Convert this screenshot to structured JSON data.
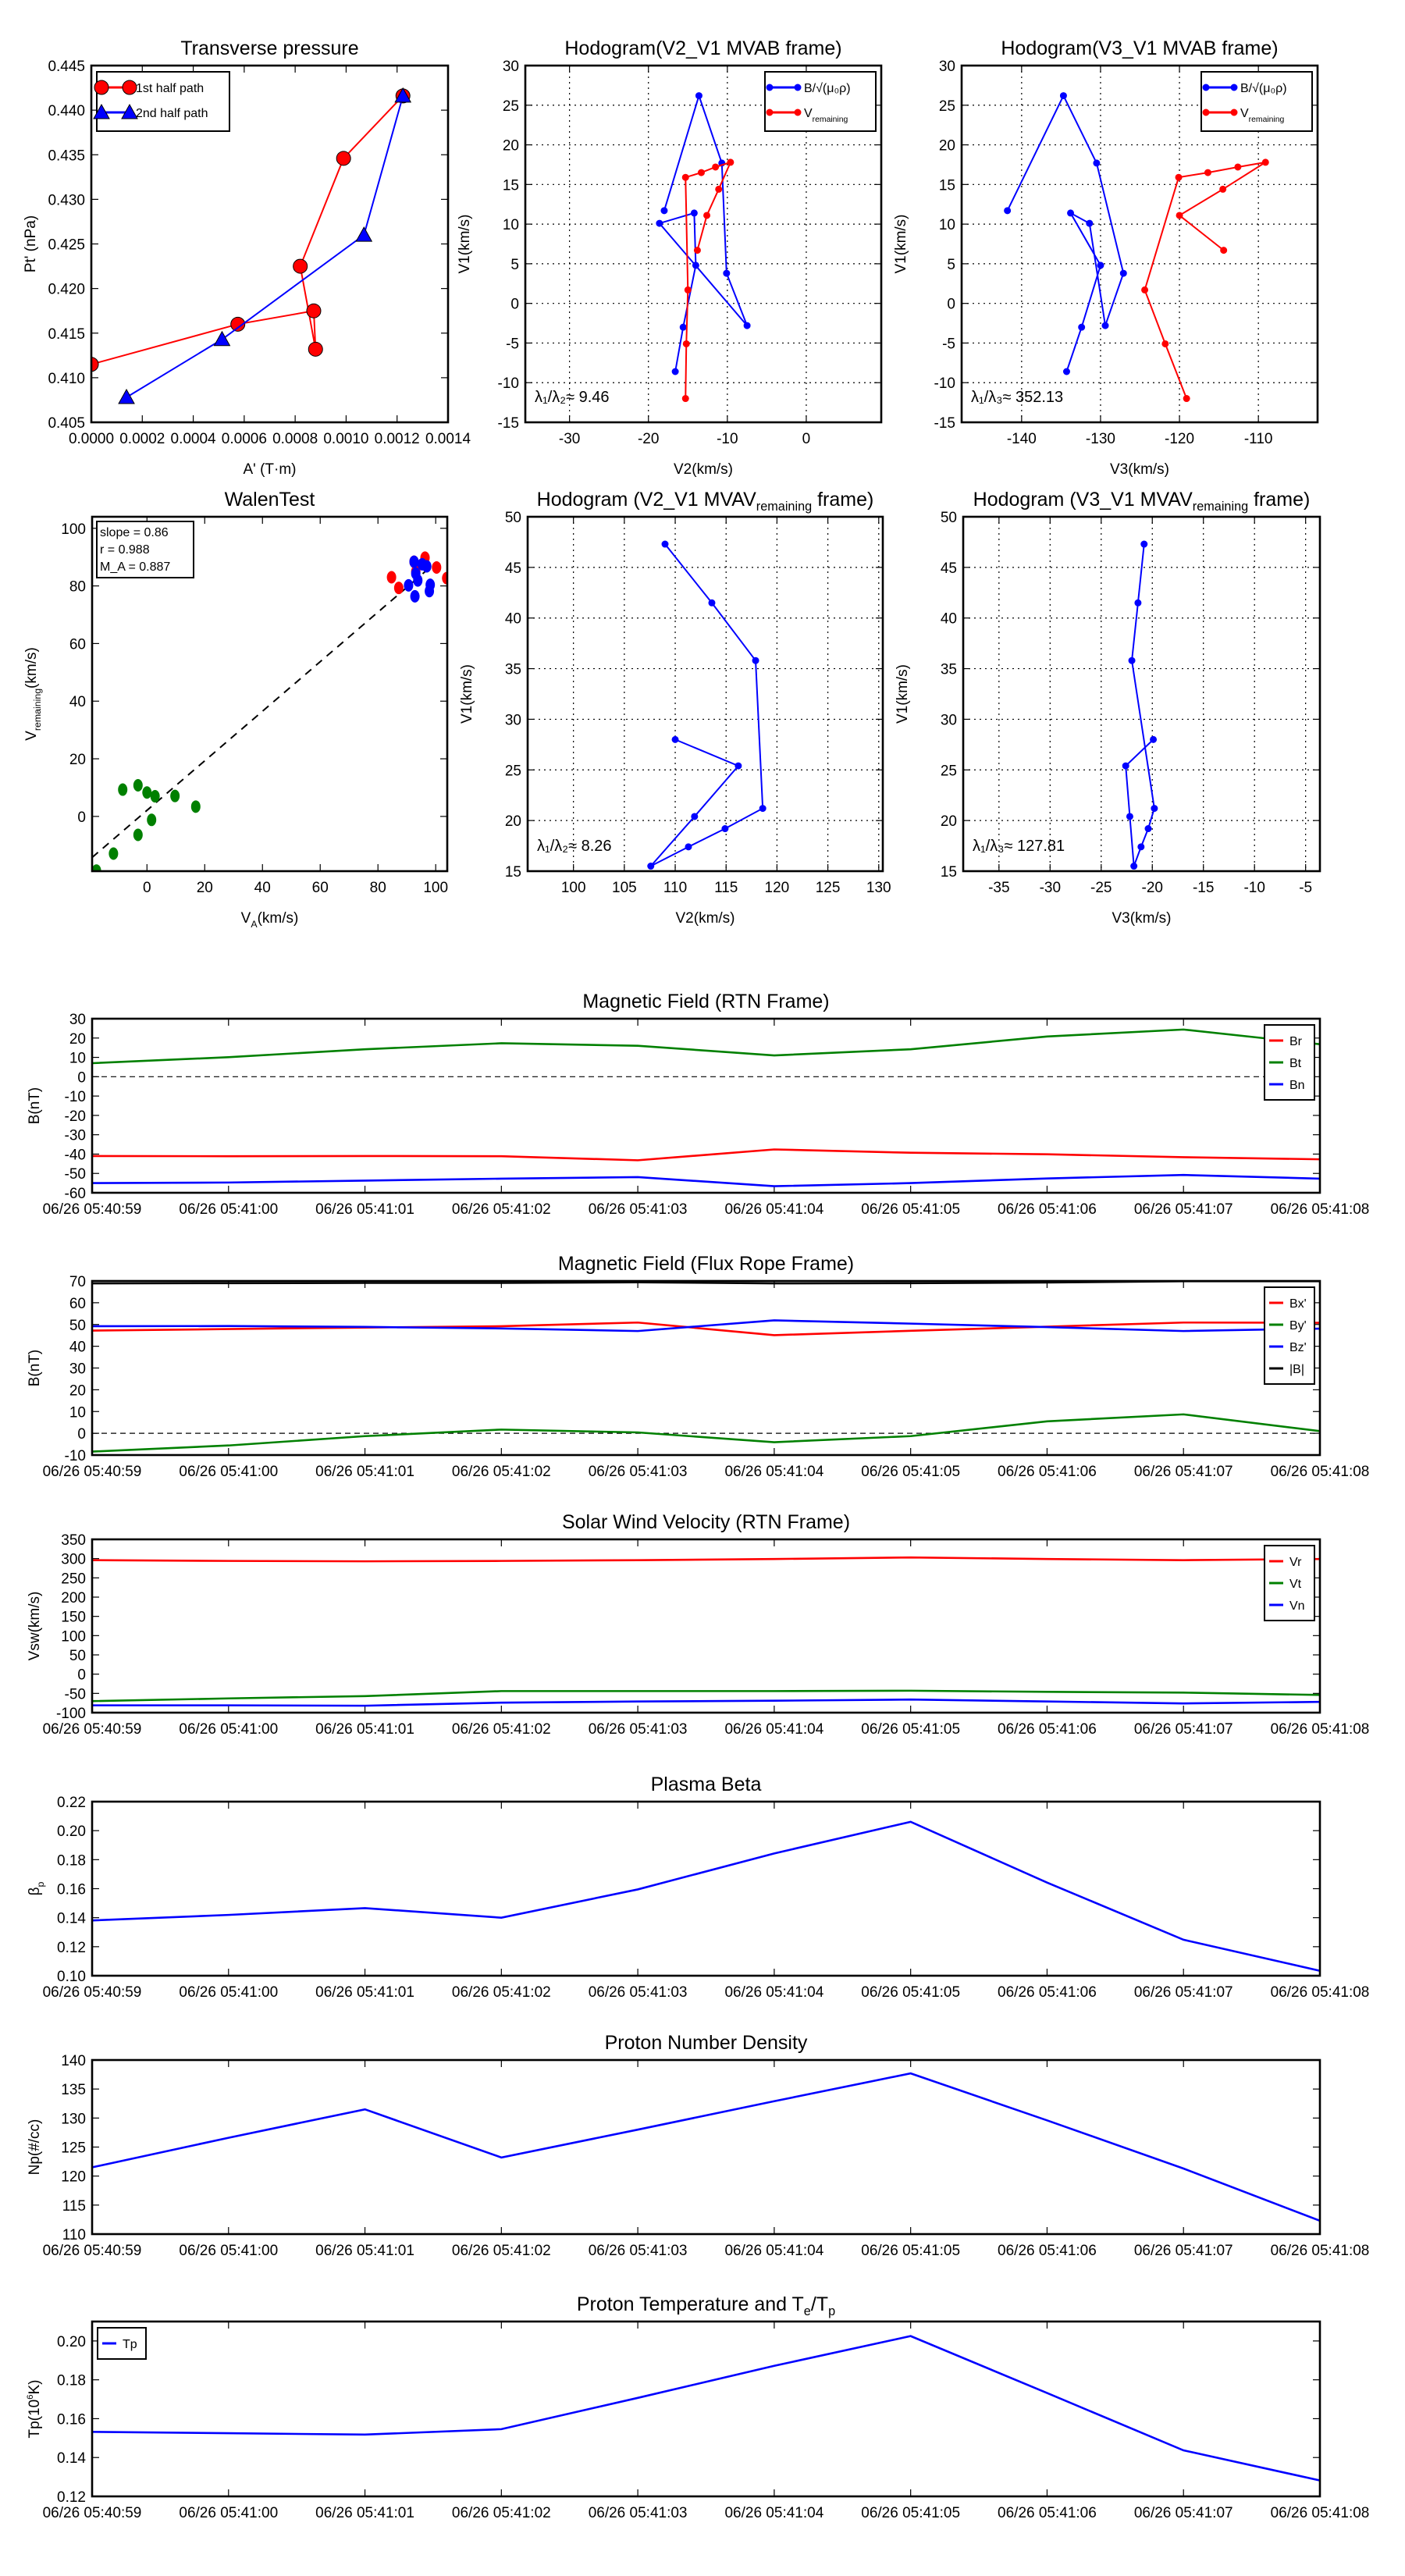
{
  "chart_data": [
    {
      "type": "line",
      "title": "Transverse pressure",
      "xlabel": "A' (T·m)",
      "ylabel": "Pt' (nPa)",
      "xlim": [
        0,
        0.0014
      ],
      "ylim": [
        0.405,
        0.445
      ],
      "xticks": [
        "0.0000",
        "0.0002",
        "0.0004",
        "0.0006",
        "0.0008",
        "0.0010",
        "0.0012",
        "0.0014"
      ],
      "yticks": [
        "0.405",
        "0.410",
        "0.415",
        "0.420",
        "0.425",
        "0.430",
        "0.435",
        "0.440",
        "0.445"
      ],
      "grid": false,
      "legend": "upper-left",
      "series": [
        {
          "name": "1st half path",
          "color": "#ff0000",
          "marker": "circle",
          "x": [
            0.0,
            0.000575,
            0.000873,
            0.00088,
            0.00082,
            0.00099,
            0.001223
          ],
          "y": [
            0.4115,
            0.416,
            0.4175,
            0.4132,
            0.4225,
            0.4346,
            0.4416
          ]
        },
        {
          "name": "2nd half path",
          "color": "#0000ff",
          "marker": "triangle",
          "x": [
            0.000138,
            0.000513,
            0.00107,
            0.001223
          ],
          "y": [
            0.4078,
            0.4143,
            0.426,
            0.4416
          ]
        }
      ]
    },
    {
      "type": "line",
      "title": "Hodogram(V2_V1 MVAB frame)",
      "xlabel": "V2(km/s)",
      "ylabel": "V1(km/s)",
      "xlim": [
        -35.6,
        9.5
      ],
      "ylim": [
        -15,
        30
      ],
      "xticks": [
        "-30",
        "-20",
        "-10",
        "0"
      ],
      "yticks": [
        "-15",
        "-10",
        "-5",
        "0",
        "5",
        "10",
        "15",
        "20",
        "25",
        "30"
      ],
      "grid": true,
      "legend": "upper-right",
      "annotation": "λ₁/λ₂≈ 9.46",
      "series": [
        {
          "name": {
            "pre": "B/√(μ₀ρ)"
          },
          "color": "#0000ff",
          "marker": "dot",
          "x": [
            -18.0,
            -13.6,
            -10.7,
            -10.1,
            -7.5,
            -18.6,
            -14.2,
            -14.0,
            -15.6,
            -16.6
          ],
          "y": [
            11.7,
            26.2,
            17.7,
            3.8,
            -2.8,
            10.1,
            11.4,
            4.8,
            -3.0,
            -8.6
          ]
        },
        {
          "name": {
            "pre": "V",
            "sub": "remaining"
          },
          "color": "#ff0000",
          "marker": "dot",
          "x": [
            -15.3,
            -15.2,
            -15.0,
            -15.3,
            -13.3,
            -11.5,
            -9.6,
            -11.1,
            -12.6,
            -13.8
          ],
          "y": [
            -12.0,
            -5.1,
            1.7,
            15.9,
            16.5,
            17.2,
            17.8,
            14.4,
            11.1,
            6.7
          ]
        }
      ]
    },
    {
      "type": "line",
      "title": "Hodogram(V3_V1 MVAB frame)",
      "xlabel": "V3(km/s)",
      "ylabel": "V1(km/s)",
      "xlim": [
        -147.6,
        -102.5
      ],
      "ylim": [
        -15,
        30
      ],
      "xticks": [
        "-140",
        "-130",
        "-120",
        "-110"
      ],
      "yticks": [
        "-15",
        "-10",
        "-5",
        "0",
        "5",
        "10",
        "15",
        "20",
        "25",
        "30"
      ],
      "grid": true,
      "legend": "upper-right",
      "annotation": "λ₁/λ₃≈ 352.13",
      "series": [
        {
          "name": {
            "pre": "B/√(μ₀ρ)"
          },
          "color": "#0000ff",
          "marker": "dot",
          "x": [
            -141.8,
            -134.7,
            -130.5,
            -127.1,
            -129.4,
            -131.4,
            -133.8,
            -130.0,
            -132.4,
            -134.3
          ],
          "y": [
            11.7,
            26.2,
            17.7,
            3.8,
            -2.8,
            10.1,
            11.4,
            4.8,
            -3.0,
            -8.6
          ]
        },
        {
          "name": {
            "pre": "V",
            "sub": "remaining"
          },
          "color": "#ff0000",
          "marker": "dot",
          "x": [
            -119.1,
            -121.8,
            -124.4,
            -120.1,
            -116.4,
            -112.6,
            -109.1,
            -114.5,
            -120.0,
            -114.4
          ],
          "y": [
            -12.0,
            -5.1,
            1.7,
            15.9,
            16.5,
            17.2,
            17.8,
            14.4,
            11.1,
            6.7
          ]
        }
      ]
    },
    {
      "type": "scatter",
      "title": "WalenTest",
      "xlabel": {
        "pre": "V",
        "sub": "A",
        "post": "(km/s)"
      },
      "ylabel": {
        "pre": "V",
        "sub": "remaining",
        "post": "(km/s)"
      },
      "xlim": [
        -19,
        104
      ],
      "ylim": [
        -19,
        104
      ],
      "xticks": [
        "0",
        "20",
        "40",
        "60",
        "80",
        "100"
      ],
      "yticks": [
        "0",
        "20",
        "40",
        "60",
        "80",
        "100"
      ],
      "grid": false,
      "stats": [
        "slope = 0.86",
        "r = 0.988",
        "M_A = 0.887"
      ],
      "fit": {
        "slope": 0.86,
        "intercept": 2.1,
        "x": [
          -19,
          100
        ]
      },
      "series": [
        {
          "name": "green",
          "color": "#008000",
          "marker": "scatter",
          "x": [
            -17.5,
            -11.6,
            -3.1,
            -8.4,
            -3.1,
            0,
            2.8,
            9.7,
            16.9,
            1.6
          ],
          "y": [
            -18.8,
            -12.9,
            -6.4,
            9.3,
            10.8,
            8.3,
            7.0,
            7.1,
            3.4,
            -1.2
          ]
        },
        {
          "name": "red",
          "color": "#ff0000",
          "marker": "scatter",
          "x": [
            84.7,
            87.2,
            96.3,
            100.3,
            103.8,
            92.5,
            93.1
          ],
          "y": [
            83.0,
            79.3,
            89.8,
            86.4,
            82.7,
            88.4,
            85.0
          ]
        },
        {
          "name": "blue",
          "color": "#0000ff",
          "marker": "scatter",
          "x": [
            92.5,
            95.3,
            96.9,
            93.1,
            93.8,
            90.6,
            98.1,
            97.8,
            92.8
          ],
          "y": [
            88.4,
            87.5,
            86.8,
            84.3,
            81.9,
            80.2,
            80.4,
            78.2,
            76.4
          ]
        }
      ]
    },
    {
      "type": "line",
      "title": {
        "pre": "Hodogram (V2_V1 MVAV",
        "sub": "remaining",
        "post": " frame)"
      },
      "xlabel": "V2(km/s)",
      "ylabel": "V1(km/s)",
      "xlim": [
        95.5,
        130.4
      ],
      "ylim": [
        15,
        50
      ],
      "xticks": [
        "100",
        "105",
        "110",
        "115",
        "120",
        "125",
        "130"
      ],
      "yticks": [
        "15",
        "20",
        "25",
        "30",
        "35",
        "40",
        "45",
        "50"
      ],
      "grid": true,
      "annotation": "λ₁/λ₂≈ 8.26",
      "series": [
        {
          "name": "B",
          "color": "#0000ff",
          "marker": "dot",
          "x": [
            109.0,
            113.6,
            117.9,
            118.6,
            114.9,
            111.3,
            107.6,
            111.9,
            116.2,
            110.0
          ],
          "y": [
            47.3,
            41.5,
            35.8,
            21.2,
            19.2,
            17.4,
            15.5,
            20.4,
            25.4,
            28.0
          ]
        }
      ]
    },
    {
      "type": "line",
      "title": {
        "pre": "Hodogram (V3_V1 MVAV",
        "sub": "remaining",
        "post": " frame)"
      },
      "xlabel": "V3(km/s)",
      "ylabel": "V1(km/s)",
      "xlim": [
        -38.5,
        -3.6
      ],
      "ylim": [
        15,
        50
      ],
      "xticks": [
        "-35",
        "-30",
        "-25",
        "-20",
        "-15",
        "-10",
        "-5"
      ],
      "yticks": [
        "15",
        "20",
        "25",
        "30",
        "35",
        "40",
        "45",
        "50"
      ],
      "grid": true,
      "annotation": "λ₁/λ₃≈ 127.81",
      "series": [
        {
          "name": "B",
          "color": "#0000ff",
          "marker": "dot",
          "x": [
            -20.8,
            -21.4,
            -22.0,
            -19.8,
            -20.4,
            -21.1,
            -21.8,
            -22.2,
            -22.6,
            -19.9
          ],
          "y": [
            47.3,
            41.5,
            35.8,
            21.2,
            19.2,
            17.4,
            15.5,
            20.4,
            25.4,
            28.0
          ]
        }
      ]
    },
    {
      "type": "line",
      "title": "Magnetic Field (RTN Frame)",
      "xlabel": "",
      "ylabel": "B(nT)",
      "ylim": [
        -60,
        30
      ],
      "yticks": [
        "-60",
        "-50",
        "-40",
        "-30",
        "-20",
        "-10",
        "0",
        "10",
        "20",
        "30"
      ],
      "zero_line": true,
      "legend": "upper-right",
      "categories": [
        "06/26 05:40:59",
        "06/26 05:41:00",
        "06/26 05:41:01",
        "06/26 05:41:02",
        "06/26 05:41:03",
        "06/26 05:41:04",
        "06/26 05:41:05",
        "06/26 05:41:06",
        "06/26 05:41:07",
        "06/26 05:41:08"
      ],
      "series": [
        {
          "name": "Br",
          "color": "#ff0000",
          "y": [
            -41.0,
            -41.1,
            -41.0,
            -41.1,
            -43.2,
            -37.6,
            -39.3,
            -40.1,
            -41.6,
            -42.7
          ]
        },
        {
          "name": "Bt",
          "color": "#008000",
          "y": [
            7.0,
            10.1,
            14.2,
            17.3,
            16.0,
            11.0,
            14.2,
            20.8,
            24.4,
            16.8
          ]
        },
        {
          "name": "Bn",
          "color": "#0000ff",
          "y": [
            -55.0,
            -54.7,
            -53.7,
            -52.7,
            -51.9,
            -56.6,
            -55.0,
            -52.6,
            -50.8,
            -52.7
          ]
        }
      ]
    },
    {
      "type": "line",
      "title": "Magnetic Field (Flux Rope Frame)",
      "xlabel": "",
      "ylabel": "B(nT)",
      "ylim": [
        -10,
        70
      ],
      "yticks": [
        "-10",
        "0",
        "10",
        "20",
        "30",
        "40",
        "50",
        "60",
        "70"
      ],
      "zero_line": true,
      "legend": "upper-right",
      "categories": [
        "06/26 05:40:59",
        "06/26 05:41:00",
        "06/26 05:41:01",
        "06/26 05:41:02",
        "06/26 05:41:03",
        "06/26 05:41:04",
        "06/26 05:41:05",
        "06/26 05:41:06",
        "06/26 05:41:07",
        "06/26 05:41:08"
      ],
      "series": [
        {
          "name": "Bx'",
          "color": "#ff0000",
          "y": [
            47.2,
            47.9,
            48.6,
            49.2,
            50.9,
            45.1,
            47.1,
            49.0,
            50.9,
            50.8
          ]
        },
        {
          "name": "By'",
          "color": "#008000",
          "y": [
            -8.4,
            -5.6,
            -1.3,
            1.7,
            0.4,
            -4.1,
            -1.3,
            5.5,
            8.7,
            1.0
          ]
        },
        {
          "name": "Bz'",
          "color": "#0000ff",
          "y": [
            49.2,
            49.3,
            48.9,
            48.2,
            47.0,
            51.9,
            50.4,
            48.8,
            47.0,
            48.1
          ]
        },
        {
          "name": "|B|",
          "color": "#000000",
          "y": [
            68.9,
            69.0,
            69.1,
            69.1,
            69.4,
            68.9,
            69.0,
            69.3,
            69.9,
            69.9
          ]
        }
      ]
    },
    {
      "type": "line",
      "title": "Solar Wind Velocity (RTN Frame)",
      "xlabel": "",
      "ylabel": "Vsw(km/s)",
      "ylim": [
        -100,
        350
      ],
      "yticks": [
        "-100",
        "-50",
        "0",
        "50",
        "100",
        "150",
        "200",
        "250",
        "300",
        "350"
      ],
      "legend": "upper-right",
      "categories": [
        "06/26 05:40:59",
        "06/26 05:41:00",
        "06/26 05:41:01",
        "06/26 05:41:02",
        "06/26 05:41:03",
        "06/26 05:41:04",
        "06/26 05:41:05",
        "06/26 05:41:06",
        "06/26 05:41:07",
        "06/26 05:41:08"
      ],
      "series": [
        {
          "name": "Vr",
          "color": "#ff0000",
          "y": [
            296,
            294,
            293,
            294,
            296,
            299,
            303,
            299,
            296,
            299
          ]
        },
        {
          "name": "Vt",
          "color": "#008000",
          "y": [
            -70,
            -63,
            -57,
            -44,
            -44,
            -44,
            -43,
            -46,
            -48,
            -54
          ]
        },
        {
          "name": "Vn",
          "color": "#0000ff",
          "y": [
            -81,
            -81,
            -82,
            -74,
            -71,
            -69,
            -66,
            -71,
            -76,
            -72
          ]
        }
      ]
    },
    {
      "type": "line",
      "title": "Plasma Beta",
      "xlabel": "",
      "ylabel": {
        "pre": "β",
        "sub": "p"
      },
      "ylim": [
        0.1,
        0.22
      ],
      "yticks": [
        "0.10",
        "0.12",
        "0.14",
        "0.16",
        "0.18",
        "0.20",
        "0.22"
      ],
      "categories": [
        "06/26 05:40:59",
        "06/26 05:41:00",
        "06/26 05:41:01",
        "06/26 05:41:02",
        "06/26 05:41:03",
        "06/26 05:41:04",
        "06/26 05:41:05",
        "06/26 05:41:06",
        "06/26 05:41:07",
        "06/26 05:41:08"
      ],
      "series": [
        {
          "name": "beta",
          "color": "#0000ff",
          "y": [
            0.1381,
            0.1419,
            0.1466,
            0.14,
            0.1595,
            0.1843,
            0.2061,
            0.1642,
            0.1248,
            0.1034
          ]
        }
      ]
    },
    {
      "type": "line",
      "title": "Proton Number Density",
      "xlabel": "",
      "ylabel": "Np(#/cc)",
      "ylim": [
        110,
        140
      ],
      "yticks": [
        "110",
        "115",
        "120",
        "125",
        "130",
        "135",
        "140"
      ],
      "categories": [
        "06/26 05:40:59",
        "06/26 05:41:00",
        "06/26 05:41:01",
        "06/26 05:41:02",
        "06/26 05:41:03",
        "06/26 05:41:04",
        "06/26 05:41:05",
        "06/26 05:41:06",
        "06/26 05:41:07",
        "06/26 05:41:08"
      ],
      "series": [
        {
          "name": "Np",
          "color": "#0000ff",
          "y": [
            121.5,
            126.6,
            131.5,
            123.2,
            128.0,
            132.9,
            137.7,
            129.6,
            121.3,
            112.3
          ]
        }
      ]
    },
    {
      "type": "line",
      "title": {
        "pre": "Proton Temperature and T",
        "sub": "e",
        "post": "/T",
        "sub2": "p"
      },
      "xlabel": "",
      "ylabel": {
        "pre": "Tp(10",
        "sup": "6",
        "post": "K)"
      },
      "ylim": [
        0.12,
        0.21
      ],
      "yticks": [
        "0.12",
        "0.14",
        "0.16",
        "0.18",
        "0.20"
      ],
      "legend": "upper-left",
      "categories": [
        "06/26 05:40:59",
        "06/26 05:41:00",
        "06/26 05:41:01",
        "06/26 05:41:02",
        "06/26 05:41:03",
        "06/26 05:41:04",
        "06/26 05:41:05",
        "06/26 05:41:06",
        "06/26 05:41:07",
        "06/26 05:41:08"
      ],
      "series": [
        {
          "name": "Tp",
          "color": "#0000ff",
          "y": [
            0.1532,
            0.1525,
            0.1518,
            0.1546,
            0.1707,
            0.1872,
            0.2025,
            0.1732,
            0.1437,
            0.1282
          ]
        }
      ]
    }
  ]
}
